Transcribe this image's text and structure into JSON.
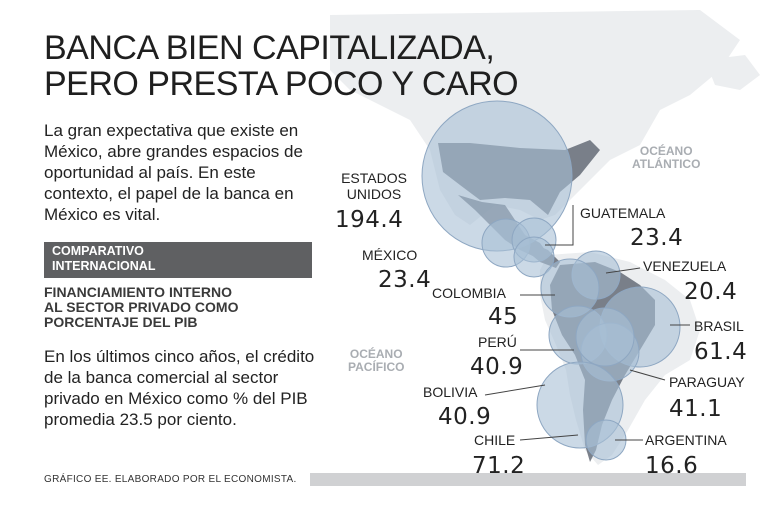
{
  "title": {
    "line1": "BANCA BIEN CAPITALIZADA,",
    "line2": "PERO PRESTA POCO Y CARO"
  },
  "intro_text": "La gran expectativa que existe en México, abre grandes espacios de oportunidad al país. En este contexto, el papel de la banca en México es vital.",
  "band": {
    "line1": "COMPARATIVO",
    "line2": "INTERNACIONAL"
  },
  "subheading": {
    "line1": "FINANCIAMIENTO INTERNO",
    "line2": "AL SECTOR PRIVADO COMO",
    "line3": "PORCENTAJE DEL PIB"
  },
  "body_text": "En los últimos cinco años, el crédito de la banca comercial al sector privado en México como % del PIB promedia 23.5 por ciento.",
  "credit": "GRÁFICO EE. ELABORADO POR EL ECONOMISTA.",
  "oceans": {
    "atlantic": {
      "line1": "OCÉANO",
      "line2": "ATLÁNTICO"
    },
    "pacific": {
      "line1": "OCÉANO",
      "line2": "PACÍFICO"
    }
  },
  "countries": {
    "usa": {
      "line1": "ESTADOS",
      "line2": "UNIDOS",
      "value": "194.4"
    },
    "mexico": {
      "name": "MÉXICO",
      "value": "23.4"
    },
    "guatemala": {
      "name": "GUATEMALA",
      "value": "23.4"
    },
    "venezuela": {
      "name": "VENEZUELA",
      "value": "20.4"
    },
    "colombia": {
      "name": "COLOMBIA",
      "value": "45"
    },
    "brasil": {
      "name": "BRASIL",
      "value": "61.4"
    },
    "peru": {
      "name": "PERÚ",
      "value": "40.9"
    },
    "paraguay": {
      "name": "PARAGUAY",
      "value": "41.1"
    },
    "bolivia": {
      "name": "BOLIVIA",
      "value": "40.9"
    },
    "chile": {
      "name": "CHILE",
      "value": "71.2"
    },
    "argentina": {
      "name": "ARGENTINA",
      "value": "16.6"
    }
  },
  "colors": {
    "land": "#eceef0",
    "land_dark": "#5d6470",
    "bubble": "#a9bfd6",
    "band": "#5f6062",
    "ocean_label": "#a9adb2"
  }
}
